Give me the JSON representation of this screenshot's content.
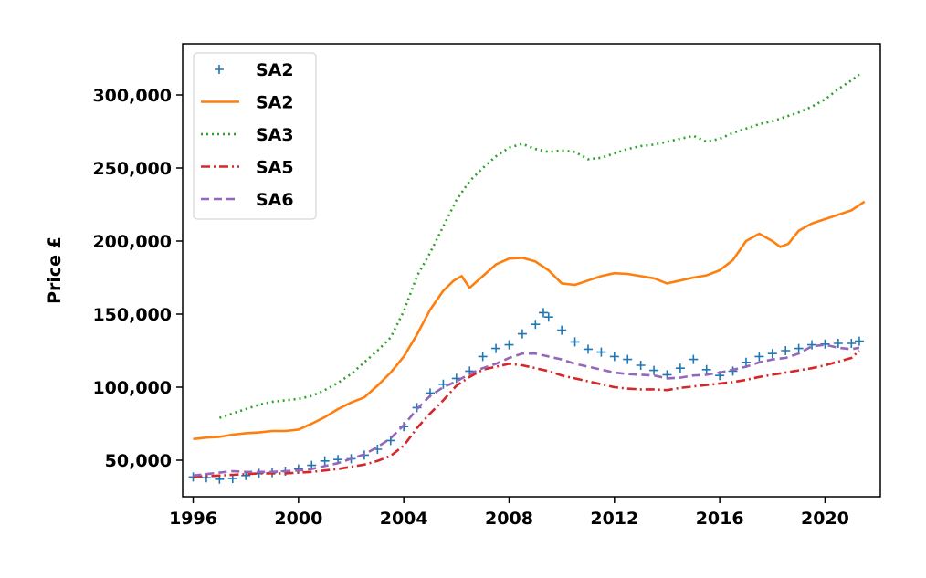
{
  "chart_data": {
    "type": "line",
    "title": "",
    "xlabel": "",
    "ylabel": "Price £",
    "xlim": [
      1995.6,
      2022.1
    ],
    "ylim": [
      25000,
      335000
    ],
    "xticks": [
      {
        "value": 1996,
        "label": "1996"
      },
      {
        "value": 2000,
        "label": "2000"
      },
      {
        "value": 2004,
        "label": "2004"
      },
      {
        "value": 2008,
        "label": "2008"
      },
      {
        "value": 2012,
        "label": "2012"
      },
      {
        "value": 2016,
        "label": "2016"
      },
      {
        "value": 2020,
        "label": "2020"
      }
    ],
    "yticks": [
      {
        "value": 50000,
        "label": "50,000"
      },
      {
        "value": 100000,
        "label": "100,000"
      },
      {
        "value": 150000,
        "label": "150,000"
      },
      {
        "value": 200000,
        "label": "200,000"
      },
      {
        "value": 250000,
        "label": "250,000"
      },
      {
        "value": 300000,
        "label": "300,000"
      }
    ],
    "grid": false,
    "legend_position": "top-left",
    "series": [
      {
        "name": "SA2",
        "style": "plus-markers",
        "color": "#1f77b4",
        "x": [
          1996.0,
          1996.5,
          1997.0,
          1997.5,
          1998.0,
          1998.5,
          1999.0,
          1999.5,
          2000.0,
          2000.5,
          2001.0,
          2001.5,
          2002.0,
          2002.5,
          2003.0,
          2003.5,
          2004.0,
          2004.5,
          2005.0,
          2005.5,
          2006.0,
          2006.5,
          2007.0,
          2007.5,
          2008.0,
          2008.5,
          2009.0,
          2009.3,
          2009.5,
          2010.0,
          2010.5,
          2011.0,
          2011.5,
          2012.0,
          2012.5,
          2013.0,
          2013.5,
          2014.0,
          2014.5,
          2015.0,
          2015.5,
          2016.0,
          2016.5,
          2017.0,
          2017.5,
          2018.0,
          2018.5,
          2019.0,
          2019.5,
          2020.0,
          2020.5,
          2021.0,
          2021.3
        ],
        "y": [
          38500,
          38000,
          37000,
          37500,
          39500,
          41000,
          41500,
          42500,
          44000,
          46500,
          49500,
          50500,
          51000,
          53500,
          57500,
          63500,
          73000,
          86000,
          96000,
          102000,
          106000,
          111000,
          121000,
          126500,
          129000,
          136500,
          143000,
          151000,
          148000,
          139000,
          131000,
          126000,
          124000,
          121000,
          119000,
          115000,
          111500,
          108500,
          113000,
          119000,
          112000,
          108000,
          111000,
          117000,
          121000,
          123000,
          125000,
          126500,
          129000,
          129500,
          130000,
          130000,
          131500
        ]
      },
      {
        "name": "SA2",
        "style": "solid",
        "color": "#ff7f0e",
        "x": [
          1996.0,
          1996.5,
          1997.0,
          1997.5,
          1998.0,
          1998.5,
          1999.0,
          1999.5,
          2000.0,
          2000.5,
          2001.0,
          2001.5,
          2002.0,
          2002.5,
          2003.0,
          2003.5,
          2004.0,
          2004.5,
          2005.0,
          2005.5,
          2005.9,
          2006.2,
          2006.5,
          2007.0,
          2007.5,
          2008.0,
          2008.5,
          2009.0,
          2009.5,
          2010.0,
          2010.5,
          2011.0,
          2011.5,
          2012.0,
          2012.5,
          2013.0,
          2013.5,
          2014.0,
          2014.5,
          2015.0,
          2015.5,
          2016.0,
          2016.5,
          2017.0,
          2017.5,
          2018.0,
          2018.3,
          2018.6,
          2019.0,
          2019.5,
          2020.0,
          2020.5,
          2021.0,
          2021.5
        ],
        "y": [
          64500,
          65500,
          66000,
          67500,
          68500,
          69000,
          70000,
          70000,
          71000,
          75000,
          79500,
          85000,
          89500,
          93000,
          101000,
          110000,
          121000,
          136000,
          153000,
          166000,
          173000,
          176000,
          168000,
          176000,
          184000,
          188000,
          188500,
          186000,
          180000,
          171000,
          170000,
          173000,
          176000,
          178000,
          177500,
          176000,
          174500,
          171000,
          173000,
          175000,
          176500,
          180000,
          187000,
          200000,
          205000,
          200000,
          196000,
          198000,
          207000,
          212000,
          215000,
          218000,
          221000,
          227000
        ]
      },
      {
        "name": "SA3",
        "style": "dotted",
        "color": "#2ca02c",
        "x": [
          1997.0,
          1997.5,
          1998.0,
          1998.5,
          1999.0,
          1999.5,
          2000.0,
          2000.5,
          2001.0,
          2001.5,
          2002.0,
          2002.5,
          2003.0,
          2003.5,
          2004.0,
          2004.5,
          2005.0,
          2005.5,
          2006.0,
          2006.5,
          2007.0,
          2007.5,
          2008.0,
          2008.5,
          2009.0,
          2009.5,
          2010.0,
          2010.5,
          2011.0,
          2011.5,
          2012.0,
          2012.5,
          2013.0,
          2013.5,
          2014.0,
          2014.5,
          2015.0,
          2015.5,
          2016.0,
          2016.5,
          2017.0,
          2017.5,
          2018.0,
          2018.5,
          2019.0,
          2019.5,
          2020.0,
          2020.5,
          2021.0,
          2021.3
        ],
        "y": [
          79000,
          82000,
          85000,
          88000,
          90000,
          91000,
          92000,
          94000,
          98000,
          103000,
          109000,
          117000,
          125000,
          134000,
          152000,
          176000,
          192000,
          210000,
          228000,
          241000,
          250000,
          258000,
          264000,
          266500,
          263000,
          261000,
          262000,
          261000,
          256000,
          257000,
          260000,
          263000,
          265000,
          266000,
          268000,
          270000,
          272000,
          268000,
          270000,
          274000,
          277000,
          280000,
          282000,
          285000,
          288000,
          292000,
          297000,
          304000,
          310000,
          314000
        ]
      },
      {
        "name": "SA5",
        "style": "dashdot",
        "color": "#d62728",
        "x": [
          1996.0,
          1996.5,
          1997.0,
          1997.5,
          1998.0,
          1998.5,
          1999.0,
          1999.5,
          2000.0,
          2000.5,
          2001.0,
          2001.5,
          2002.0,
          2002.5,
          2003.0,
          2003.5,
          2004.0,
          2004.5,
          2005.0,
          2005.5,
          2006.0,
          2006.5,
          2007.0,
          2007.5,
          2008.0,
          2008.5,
          2009.0,
          2009.5,
          2010.0,
          2010.5,
          2011.0,
          2011.5,
          2012.0,
          2012.5,
          2013.0,
          2013.5,
          2014.0,
          2014.5,
          2015.0,
          2015.5,
          2016.0,
          2016.5,
          2017.0,
          2017.5,
          2018.0,
          2018.5,
          2019.0,
          2019.5,
          2020.0,
          2020.5,
          2021.0,
          2021.3
        ],
        "y": [
          38500,
          39000,
          39500,
          40000,
          40500,
          41000,
          41000,
          41000,
          41500,
          42000,
          43000,
          44000,
          45500,
          47000,
          49500,
          53000,
          60000,
          72000,
          82000,
          91000,
          101000,
          107000,
          112000,
          114000,
          116000,
          115000,
          113000,
          111000,
          108000,
          106000,
          104000,
          102000,
          100000,
          99000,
          98500,
          98500,
          98000,
          99500,
          100500,
          101500,
          102500,
          103500,
          105000,
          107000,
          108500,
          110000,
          111500,
          113000,
          115000,
          117500,
          120000,
          125000
        ]
      },
      {
        "name": "SA6",
        "style": "dashed",
        "color": "#9467bd",
        "x": [
          1996.0,
          1996.5,
          1997.0,
          1997.5,
          1998.0,
          1998.5,
          1999.0,
          1999.5,
          2000.0,
          2000.5,
          2001.0,
          2001.5,
          2002.0,
          2002.5,
          2003.0,
          2003.5,
          2004.0,
          2004.5,
          2005.0,
          2005.5,
          2006.0,
          2006.5,
          2007.0,
          2007.5,
          2008.0,
          2008.5,
          2009.0,
          2009.5,
          2010.0,
          2010.5,
          2011.0,
          2011.5,
          2012.0,
          2012.5,
          2013.0,
          2013.5,
          2014.0,
          2014.5,
          2015.0,
          2015.5,
          2016.0,
          2016.5,
          2017.0,
          2017.5,
          2018.0,
          2018.5,
          2019.0,
          2019.5,
          2020.0,
          2020.5,
          2021.0,
          2021.3
        ],
        "y": [
          39500,
          40500,
          41500,
          42500,
          42000,
          42000,
          42000,
          42500,
          43000,
          44000,
          46000,
          48000,
          51000,
          54000,
          59000,
          65000,
          74000,
          85000,
          94000,
          100000,
          104000,
          109000,
          113000,
          116000,
          120000,
          123000,
          123000,
          121000,
          119000,
          116000,
          114000,
          112000,
          110000,
          109000,
          108500,
          108000,
          106000,
          106500,
          108000,
          108500,
          110000,
          112000,
          114000,
          117000,
          119000,
          120000,
          123000,
          128000,
          129000,
          127000,
          126000,
          127000
        ]
      }
    ]
  }
}
